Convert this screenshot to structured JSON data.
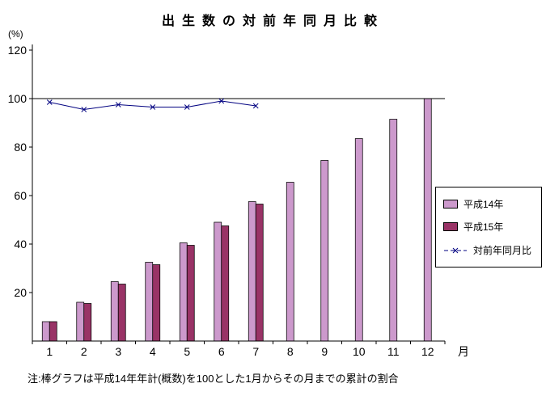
{
  "chart_data": {
    "type": "bar",
    "title": "出生数の対前年同月比較",
    "unit_label": "(%)",
    "x_axis_suffix": "月",
    "note": "注:棒グラフは平成14年年計(概数)を100とした1月からその月までの累計の割合",
    "categories": [
      "1",
      "2",
      "3",
      "4",
      "5",
      "6",
      "7",
      "8",
      "9",
      "10",
      "11",
      "12"
    ],
    "ylim": [
      0,
      120
    ],
    "yticks": [
      20,
      40,
      60,
      80,
      100,
      120
    ],
    "reference_line": 100,
    "grid": false,
    "legend_position": "right",
    "series": [
      {
        "name": "平成14年",
        "type": "bar",
        "color": "#CC99CC",
        "values": [
          8,
          16,
          24.5,
          32.5,
          40.5,
          49,
          57.5,
          65.5,
          74.5,
          83.5,
          91.5,
          100
        ]
      },
      {
        "name": "平成15年",
        "type": "bar",
        "color": "#993366",
        "values": [
          8,
          15.5,
          23.5,
          31.5,
          39.5,
          47.5,
          56.5,
          null,
          null,
          null,
          null,
          null
        ]
      },
      {
        "name": "対前年同月比",
        "type": "line",
        "color": "#000080",
        "marker": "x",
        "values": [
          98.5,
          95.5,
          97.5,
          96.5,
          96.5,
          99,
          97,
          null,
          null,
          null,
          null,
          null
        ]
      }
    ]
  }
}
